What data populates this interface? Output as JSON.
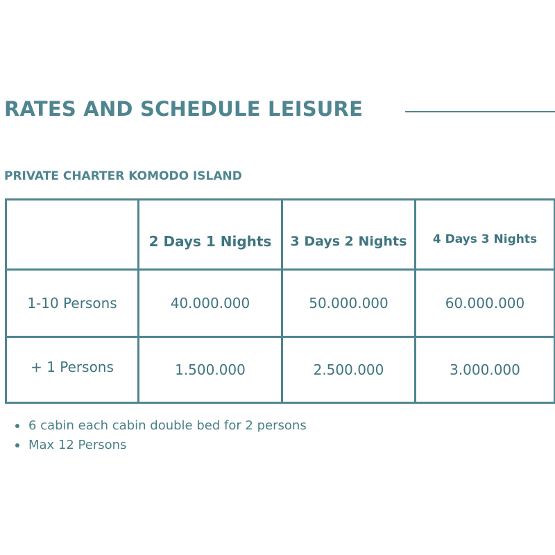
{
  "title": "RATES AND SCHEDULE LEISURE",
  "subtitle": "PRIVATE CHARTER KOMODO ISLAND",
  "table": {
    "corner": "",
    "columns": [
      "2 Days 1 Nights",
      "3 Days 2 Nights",
      "4 Days 3  Nights"
    ],
    "rows": [
      {
        "label": "1-10 Persons",
        "values": [
          "40.000.000",
          "50.000.000",
          "60.000.000"
        ]
      },
      {
        "label": "+ 1 Persons",
        "values": [
          "1.500.000",
          "2.500.000",
          "3.000.000"
        ]
      }
    ]
  },
  "notes": [
    "6 cabin each cabin double bed for 2 persons",
    "Max 12 Persons"
  ],
  "colors": {
    "accent": "#4f8590",
    "text": "#3f7580",
    "background": "#ffffff"
  }
}
